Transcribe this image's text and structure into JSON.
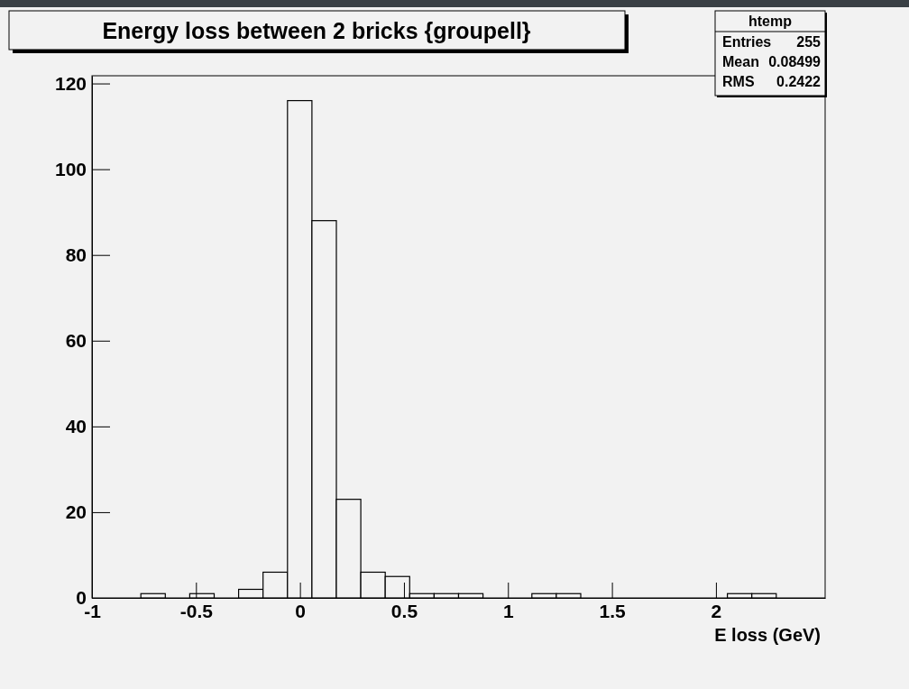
{
  "chart_data": {
    "type": "histogram",
    "title": "Energy loss between 2 bricks {groupell}",
    "xlabel": "E loss (GeV)",
    "bins": [
      -1,
      -0.8825,
      -0.765,
      -0.6475,
      -0.53,
      -0.4125,
      -0.295,
      -0.1775,
      -0.06,
      0.0575,
      0.175,
      0.2925,
      0.41,
      0.5275,
      0.645,
      0.7625,
      0.88,
      0.9975,
      1.115,
      1.2325,
      1.35,
      1.4675,
      1.585,
      1.7025,
      1.82,
      1.9375,
      2.055,
      2.1725,
      2.29,
      2.4075,
      2.525
    ],
    "values": [
      0,
      0,
      1,
      0,
      1,
      0,
      2,
      6,
      116,
      88,
      23,
      6,
      5,
      1,
      1,
      1,
      0,
      0,
      1,
      1,
      0,
      0,
      0,
      0,
      0,
      0,
      1,
      1,
      0,
      0
    ],
    "color": "#000000",
    "xlim": [
      -1,
      2.525
    ],
    "ylim": [
      0,
      121.8
    ],
    "xticks": [
      -1,
      -0.5,
      0,
      0.5,
      1,
      1.5,
      2
    ],
    "yticks": [
      0,
      20,
      40,
      60,
      80,
      100,
      120
    ],
    "grid": false,
    "annotations": [
      "htemp",
      "Entries",
      "255",
      "Mean",
      "0.08499",
      "RMS",
      "0.2422"
    ]
  }
}
